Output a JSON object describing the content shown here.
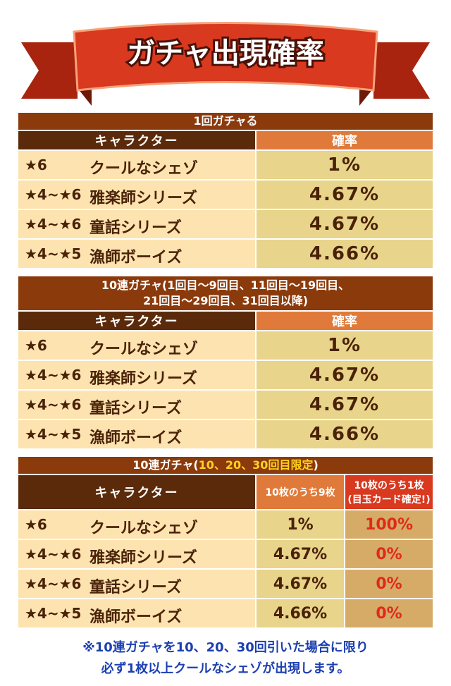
{
  "title": "ガチャ出現確率",
  "sections": [
    {
      "heading": [
        "1回ガチャる"
      ],
      "columns": [
        "キャラクター",
        "確率"
      ],
      "rows": [
        [
          "★6",
          "クールなシェゾ",
          "1%"
        ],
        [
          "★4~★6",
          "雅楽師シリーズ",
          "4.67%"
        ],
        [
          "★4~★6",
          "童話シリーズ",
          "4.67%"
        ],
        [
          "★4~★5",
          "漁師ボーイズ",
          "4.66%"
        ]
      ]
    },
    {
      "heading": [
        "10連ガチャ(1回目～9回目、11回目～19回目、",
        "21回目～29回目、31回目以降)"
      ],
      "columns": [
        "キャラクター",
        "確率"
      ],
      "rows": [
        [
          "★6",
          "クールなシェゾ",
          "1%"
        ],
        [
          "★4~★6",
          "雅楽師シリーズ",
          "4.67%"
        ],
        [
          "★4~★6",
          "童話シリーズ",
          "4.67%"
        ],
        [
          "★4~★5",
          "漁師ボーイズ",
          "4.66%"
        ]
      ]
    },
    {
      "heading": [
        "10連ガチャ(",
        "10、20、30回目限定",
        ")"
      ],
      "columns": [
        "キャラクター",
        "10枚のうち9枚",
        [
          "10枚のうち1枚",
          "(目玉カード確定!)"
        ]
      ],
      "rows": [
        [
          "★6",
          "クールなシェゾ",
          "1%",
          "100%"
        ],
        [
          "★4~★6",
          "雅楽師シリーズ",
          "4.67%",
          "0%"
        ],
        [
          "★4~★6",
          "童話シリーズ",
          "4.67%",
          "0%"
        ],
        [
          "★4~★5",
          "漁師ボーイズ",
          "4.66%",
          "0%"
        ]
      ]
    }
  ],
  "note": [
    "※10連ガチャを10、20、30回引いた場合に限り",
    "必ず1枚以上クールなシェゾが出現します。"
  ]
}
